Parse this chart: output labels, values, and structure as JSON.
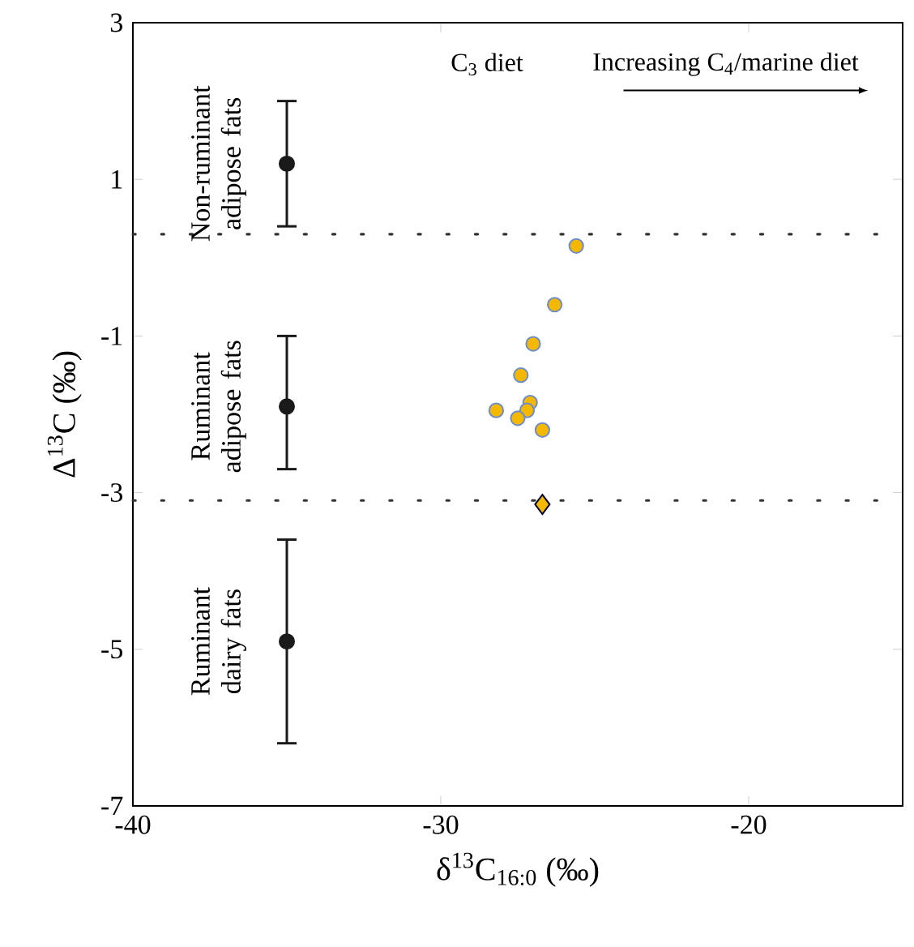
{
  "chart_data": {
    "type": "scatter",
    "xlabel": "δ$^{13}$C$_{16:0}$ (‰)",
    "ylabel": "Δ$^{13}$C (‰)",
    "xlim": [
      -40,
      -15
    ],
    "ylim": [
      -7,
      3
    ],
    "xticks": [
      -40,
      -30,
      -20
    ],
    "yticks": [
      3,
      1,
      -1,
      -3,
      -5,
      -7
    ],
    "grid": false,
    "series": [
      {
        "color": "#1a1a1a",
        "marker": "circle",
        "x": [
          -35,
          -35,
          -35
        ],
        "values": [
          1.2,
          -1.9,
          -4.9
        ],
        "errors": [
          [
            0.4,
            2.0
          ],
          [
            -2.7,
            -1.0
          ],
          [
            -6.2,
            -3.6
          ]
        ]
      },
      {
        "color": "#f5b800",
        "marker": "circle",
        "x": [
          -25.6,
          -26.3,
          -27.0,
          -27.4,
          -27.1,
          -28.2,
          -27.2,
          -27.5,
          -26.7
        ],
        "values": [
          0.15,
          -0.6,
          -1.1,
          -1.5,
          -1.85,
          -1.95,
          -1.95,
          -2.05,
          -2.2
        ]
      },
      {
        "color": "#f5b800",
        "marker": "diamond",
        "x": [
          -26.7
        ],
        "values": [
          -3.15
        ]
      }
    ],
    "ref_lines": [
      {
        "axis": "y",
        "value": 0.3,
        "color": "#333333",
        "line_style": "dotted"
      },
      {
        "axis": "y",
        "value": -3.1,
        "color": "#333333",
        "line_style": "dotted"
      }
    ],
    "annotations": [
      "Non-ruminant adipose fats",
      "Ruminant adipose fats",
      "Ruminant dairy fats",
      "C$_{3}$ diet",
      "Increasing C$_{4}$/marine diet"
    ]
  }
}
